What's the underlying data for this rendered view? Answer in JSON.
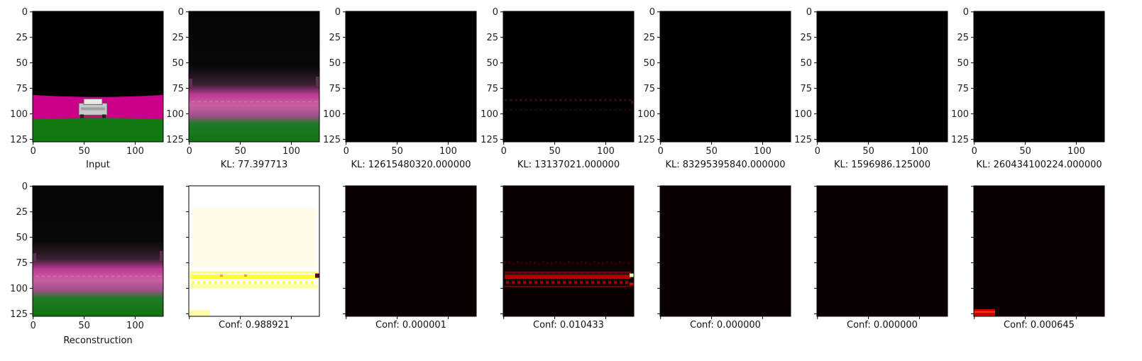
{
  "chart_data": {
    "type": "heatmap",
    "image_size": [
      128,
      128
    ],
    "axis_ticks": [
      "0",
      "50",
      "100"
    ],
    "y_ticks": [
      "0",
      "25",
      "50",
      "75",
      "100",
      "125"
    ],
    "top_row": [
      {
        "caption": "Input",
        "render": "input_scene"
      },
      {
        "caption": "KL: 77.397713",
        "render": "recon_scene"
      },
      {
        "caption": "KL: 12615480320.000000",
        "render": "black"
      },
      {
        "caption": "KL: 13137021.000000",
        "render": "faint_band"
      },
      {
        "caption": "KL: 83295395840.000000",
        "render": "black"
      },
      {
        "caption": "KL: 1596986.125000",
        "render": "black"
      },
      {
        "caption": "KL: 260434100224.000000",
        "render": "black"
      }
    ],
    "bottom_row": [
      {
        "caption": "Reconstruction",
        "render": "recon_scene",
        "confidence": null
      },
      {
        "caption": "Conf: 0.988921",
        "render": "conf_high",
        "confidence": 0.988921
      },
      {
        "caption": "Conf: 0.000001",
        "render": "conf_dark",
        "confidence": 1e-06
      },
      {
        "caption": "Conf: 0.010433",
        "render": "conf_band",
        "confidence": 0.010433
      },
      {
        "caption": "Conf: 0.000000",
        "render": "conf_dark",
        "confidence": 0.0
      },
      {
        "caption": "Conf: 0.000000",
        "render": "conf_dark",
        "confidence": 0.0
      },
      {
        "caption": "Conf: 0.000645",
        "render": "conf_corner",
        "confidence": 0.000645
      }
    ],
    "colors": {
      "road": "#cc0088",
      "grass": "#107a10",
      "sky": "#000000",
      "heat_low": "#0b0000",
      "heat_mid": "#b00000",
      "heat_high": "#ffff40",
      "heat_white": "#ffffff"
    }
  }
}
